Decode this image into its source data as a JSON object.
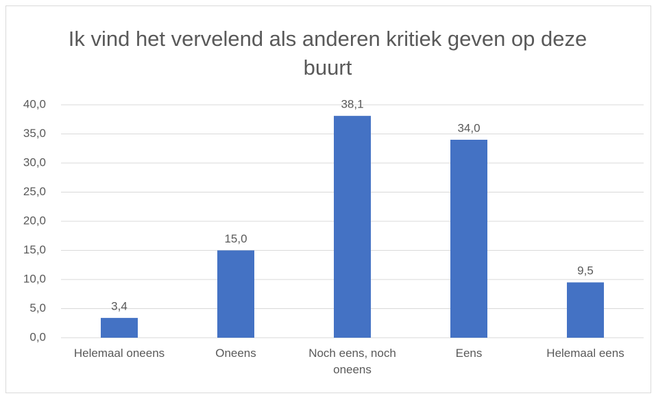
{
  "chart_data": {
    "type": "bar",
    "title": "Ik vind het vervelend als anderen kritiek geven op deze buurt",
    "categories": [
      "Helemaal oneens",
      "Oneens",
      "Noch eens, noch oneens",
      "Eens",
      "Helemaal eens"
    ],
    "values": [
      3.4,
      15.0,
      38.1,
      34.0,
      9.5
    ],
    "value_labels": [
      "3,4",
      "15,0",
      "38,1",
      "34,0",
      "9,5"
    ],
    "color": "#4472c4",
    "ylim": [
      0,
      40
    ],
    "yticks": [
      {
        "value": 0,
        "label": "0,0"
      },
      {
        "value": 5,
        "label": "5,0"
      },
      {
        "value": 10,
        "label": "10,0"
      },
      {
        "value": 15,
        "label": "15,0"
      },
      {
        "value": 20,
        "label": "20,0"
      },
      {
        "value": 25,
        "label": "25,0"
      },
      {
        "value": 30,
        "label": "30,0"
      },
      {
        "value": 35,
        "label": "35,0"
      },
      {
        "value": 40,
        "label": "40,0"
      }
    ],
    "grid": true
  }
}
